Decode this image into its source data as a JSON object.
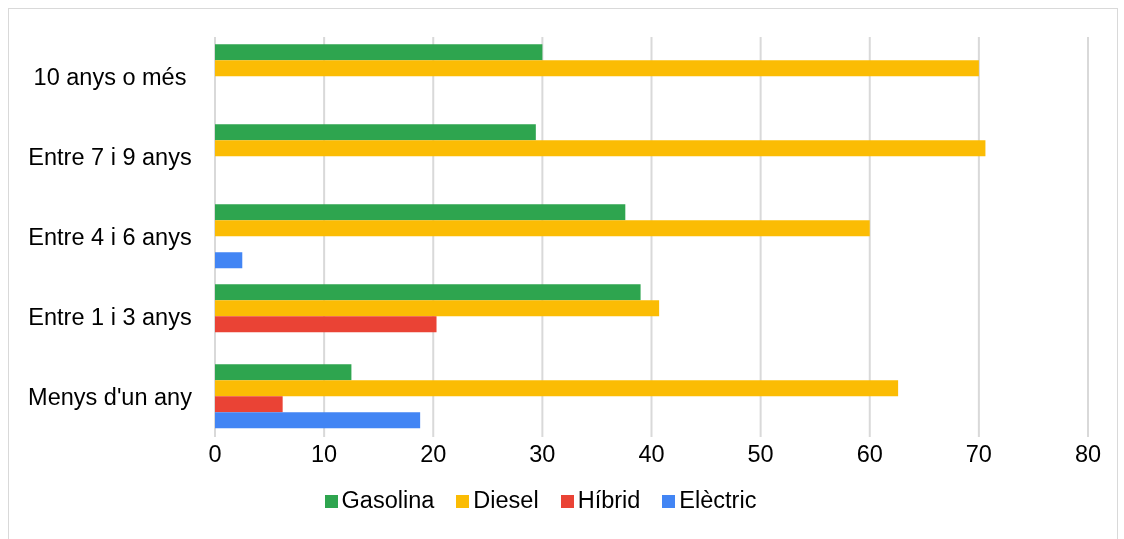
{
  "chart_data": {
    "type": "bar",
    "orientation": "horizontal",
    "categories": [
      "10 anys o més",
      "Entre 7 i 9 anys",
      "Entre 4 i 6 anys",
      "Entre 1 i 3 anys",
      "Menys d'un any"
    ],
    "series": [
      {
        "name": "Gasolina",
        "color": "#2ea54f",
        "values": [
          30.0,
          29.4,
          37.6,
          39.0,
          12.5
        ]
      },
      {
        "name": "Diesel",
        "color": "#fbbc04",
        "values": [
          70.0,
          70.6,
          60.0,
          40.7,
          62.6
        ]
      },
      {
        "name": "Híbrid",
        "color": "#ea4335",
        "values": [
          null,
          null,
          null,
          20.3,
          6.2
        ]
      },
      {
        "name": "Elèctric",
        "color": "#4285f4",
        "values": [
          null,
          null,
          2.5,
          null,
          18.8
        ]
      }
    ],
    "xlim": [
      0,
      80
    ],
    "xticks": [
      0,
      10,
      20,
      30,
      40,
      50,
      60,
      70,
      80
    ],
    "grid": "x",
    "legend": "bottom"
  }
}
